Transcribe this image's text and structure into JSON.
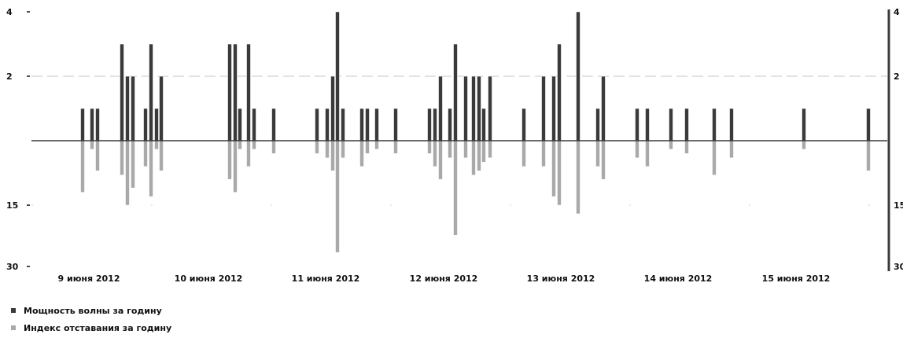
{
  "chart_data": {
    "type": "bar",
    "x_ticks": [
      "9 июня 2012",
      "10 июня 2012",
      "11 июня 2012",
      "12 июня 2012",
      "13 июня 2012",
      "14 июня 2012",
      "15 июня 2012"
    ],
    "y_left_upper_ticks": [
      "4",
      "2"
    ],
    "y_left_lower_ticks": [
      "15",
      "30"
    ],
    "y_right_upper_ticks": [
      "4",
      "2"
    ],
    "y_right_lower_ticks": [
      "15",
      "30"
    ],
    "upper_ylim": [
      0,
      4
    ],
    "lower_ylim": [
      0,
      30
    ],
    "grid": "horizontal dashed at 2 (upper) and 15 (lower)",
    "legend_position": "bottom-left",
    "series": [
      {
        "name": "Мощность волны за годину",
        "color": "#3a3a3a",
        "direction": "up",
        "points": [
          {
            "x": 105,
            "v": 1
          },
          {
            "x": 117,
            "v": 1
          },
          {
            "x": 124,
            "v": 1
          },
          {
            "x": 155,
            "v": 3
          },
          {
            "x": 162,
            "v": 2
          },
          {
            "x": 169,
            "v": 2
          },
          {
            "x": 185,
            "v": 1
          },
          {
            "x": 192,
            "v": 3
          },
          {
            "x": 199,
            "v": 1
          },
          {
            "x": 205,
            "v": 2
          },
          {
            "x": 292,
            "v": 3
          },
          {
            "x": 299,
            "v": 3
          },
          {
            "x": 305,
            "v": 1
          },
          {
            "x": 316,
            "v": 3
          },
          {
            "x": 323,
            "v": 1
          },
          {
            "x": 348,
            "v": 1
          },
          {
            "x": 403,
            "v": 1
          },
          {
            "x": 416,
            "v": 1
          },
          {
            "x": 423,
            "v": 2
          },
          {
            "x": 429,
            "v": 4
          },
          {
            "x": 436,
            "v": 1
          },
          {
            "x": 460,
            "v": 1
          },
          {
            "x": 467,
            "v": 1
          },
          {
            "x": 479,
            "v": 1
          },
          {
            "x": 503,
            "v": 1
          },
          {
            "x": 546,
            "v": 1
          },
          {
            "x": 553,
            "v": 1
          },
          {
            "x": 560,
            "v": 2
          },
          {
            "x": 572,
            "v": 1
          },
          {
            "x": 579,
            "v": 3
          },
          {
            "x": 592,
            "v": 2
          },
          {
            "x": 602,
            "v": 2
          },
          {
            "x": 609,
            "v": 2
          },
          {
            "x": 615,
            "v": 1
          },
          {
            "x": 623,
            "v": 2
          },
          {
            "x": 666,
            "v": 1
          },
          {
            "x": 691,
            "v": 2
          },
          {
            "x": 704,
            "v": 2
          },
          {
            "x": 711,
            "v": 3
          },
          {
            "x": 735,
            "v": 4
          },
          {
            "x": 760,
            "v": 1
          },
          {
            "x": 767,
            "v": 2
          },
          {
            "x": 810,
            "v": 1
          },
          {
            "x": 823,
            "v": 1
          },
          {
            "x": 853,
            "v": 1
          },
          {
            "x": 873,
            "v": 1
          },
          {
            "x": 908,
            "v": 1
          },
          {
            "x": 930,
            "v": 1
          },
          {
            "x": 1022,
            "v": 1
          },
          {
            "x": 1104,
            "v": 1
          }
        ]
      },
      {
        "name": "Индекс отставания за годину",
        "color": "#a9a9a9",
        "direction": "down",
        "points": [
          {
            "x": 105,
            "v": 12
          },
          {
            "x": 117,
            "v": 2
          },
          {
            "x": 124,
            "v": 7
          },
          {
            "x": 155,
            "v": 8
          },
          {
            "x": 162,
            "v": 15
          },
          {
            "x": 169,
            "v": 11
          },
          {
            "x": 185,
            "v": 6
          },
          {
            "x": 192,
            "v": 13
          },
          {
            "x": 199,
            "v": 2
          },
          {
            "x": 205,
            "v": 7
          },
          {
            "x": 292,
            "v": 9
          },
          {
            "x": 299,
            "v": 12
          },
          {
            "x": 305,
            "v": 2
          },
          {
            "x": 316,
            "v": 6
          },
          {
            "x": 323,
            "v": 2
          },
          {
            "x": 348,
            "v": 3
          },
          {
            "x": 403,
            "v": 3
          },
          {
            "x": 416,
            "v": 4
          },
          {
            "x": 423,
            "v": 7
          },
          {
            "x": 429,
            "v": 26
          },
          {
            "x": 436,
            "v": 4
          },
          {
            "x": 460,
            "v": 6
          },
          {
            "x": 467,
            "v": 3
          },
          {
            "x": 479,
            "v": 2
          },
          {
            "x": 503,
            "v": 3
          },
          {
            "x": 546,
            "v": 3
          },
          {
            "x": 553,
            "v": 6
          },
          {
            "x": 560,
            "v": 9
          },
          {
            "x": 572,
            "v": 4
          },
          {
            "x": 579,
            "v": 22
          },
          {
            "x": 592,
            "v": 4
          },
          {
            "x": 602,
            "v": 8
          },
          {
            "x": 609,
            "v": 7
          },
          {
            "x": 615,
            "v": 5
          },
          {
            "x": 623,
            "v": 4
          },
          {
            "x": 666,
            "v": 6
          },
          {
            "x": 691,
            "v": 6
          },
          {
            "x": 704,
            "v": 13
          },
          {
            "x": 711,
            "v": 15
          },
          {
            "x": 735,
            "v": 17
          },
          {
            "x": 760,
            "v": 6
          },
          {
            "x": 767,
            "v": 9
          },
          {
            "x": 810,
            "v": 4
          },
          {
            "x": 823,
            "v": 6
          },
          {
            "x": 853,
            "v": 2
          },
          {
            "x": 873,
            "v": 3
          },
          {
            "x": 908,
            "v": 8
          },
          {
            "x": 930,
            "v": 4
          },
          {
            "x": 1022,
            "v": 2
          },
          {
            "x": 1104,
            "v": 7
          }
        ]
      }
    ]
  }
}
